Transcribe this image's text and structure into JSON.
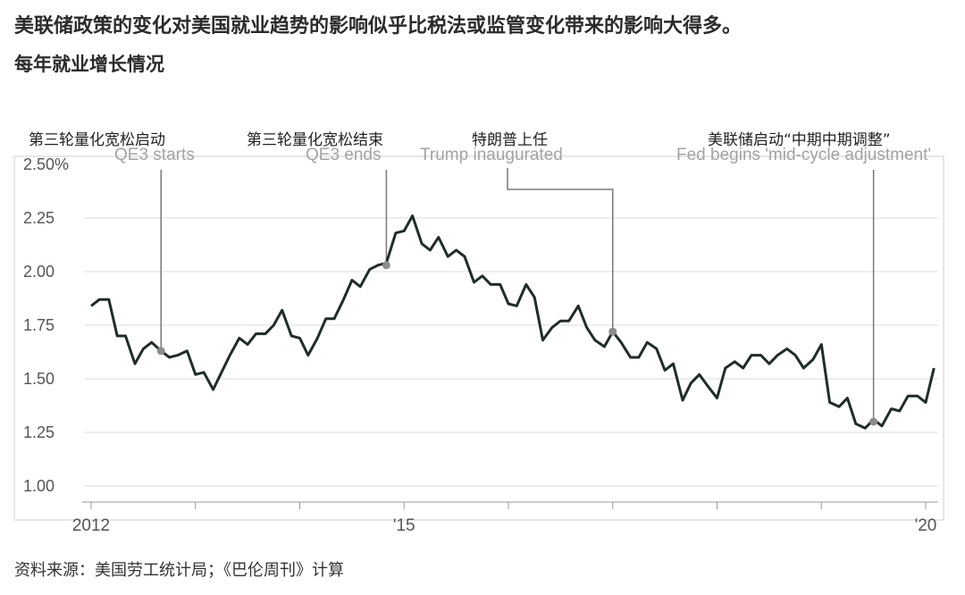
{
  "header": {
    "title": "美联储政策的变化对美国就业趋势的影响似乎比税法或监管变化带来的影响大得多。",
    "subtitle": "每年就业增长情况"
  },
  "footer": {
    "source": "资料来源：美国劳工统计局；《巴伦周刊》计算"
  },
  "chart_data": {
    "type": "line",
    "title": "",
    "xlabel": "",
    "ylabel": "",
    "ylim": [
      1.0,
      2.5
    ],
    "yticks": [
      "2.50%",
      "2.25",
      "2.00",
      "1.75",
      "1.50",
      "1.25",
      "1.00"
    ],
    "ytick_values": [
      2.5,
      2.25,
      2.0,
      1.75,
      1.5,
      1.25,
      1.0
    ],
    "xlim": [
      2012.0,
      2020.0
    ],
    "xticks": [
      "2012",
      "'15",
      "'20"
    ],
    "xtick_values": [
      2012,
      2015,
      2020
    ],
    "minor_xticks": [
      2013,
      2014,
      2016,
      2017,
      2018,
      2019
    ],
    "grid": "horizontal",
    "series": [
      {
        "color": "#1f2d2a",
        "x": [
          2012.0,
          2012.08,
          2012.17,
          2012.25,
          2012.33,
          2012.42,
          2012.5,
          2012.58,
          2012.67,
          2012.75,
          2012.83,
          2012.92,
          2013.0,
          2013.08,
          2013.17,
          2013.25,
          2013.33,
          2013.42,
          2013.5,
          2013.58,
          2013.67,
          2013.75,
          2013.83,
          2013.92,
          2014.0,
          2014.08,
          2014.17,
          2014.25,
          2014.33,
          2014.42,
          2014.5,
          2014.58,
          2014.67,
          2014.75,
          2014.83,
          2014.92,
          2015.0,
          2015.08,
          2015.17,
          2015.25,
          2015.33,
          2015.42,
          2015.5,
          2015.58,
          2015.67,
          2015.75,
          2015.83,
          2015.92,
          2016.0,
          2016.08,
          2016.17,
          2016.25,
          2016.33,
          2016.42,
          2016.5,
          2016.58,
          2016.67,
          2016.75,
          2016.83,
          2016.92,
          2017.0,
          2017.08,
          2017.17,
          2017.25,
          2017.33,
          2017.42,
          2017.5,
          2017.58,
          2017.67,
          2017.75,
          2017.83,
          2017.92,
          2018.0,
          2018.08,
          2018.17,
          2018.25,
          2018.33,
          2018.42,
          2018.5,
          2018.58,
          2018.67,
          2018.75,
          2018.83,
          2018.92,
          2019.0,
          2019.08,
          2019.17,
          2019.25,
          2019.33,
          2019.42,
          2019.5,
          2019.58,
          2019.67,
          2019.75,
          2019.83,
          2019.92,
          2020.0,
          2020.08
        ],
        "values": [
          1.84,
          1.87,
          1.87,
          1.7,
          1.7,
          1.57,
          1.64,
          1.67,
          1.63,
          1.6,
          1.61,
          1.63,
          1.52,
          1.53,
          1.45,
          1.53,
          1.61,
          1.69,
          1.66,
          1.71,
          1.71,
          1.75,
          1.82,
          1.7,
          1.69,
          1.61,
          1.69,
          1.78,
          1.78,
          1.87,
          1.96,
          1.93,
          2.01,
          2.03,
          2.04,
          2.18,
          2.19,
          2.26,
          2.13,
          2.1,
          2.16,
          2.07,
          2.1,
          2.07,
          1.95,
          1.98,
          1.94,
          1.94,
          1.85,
          1.84,
          1.94,
          1.88,
          1.68,
          1.74,
          1.77,
          1.77,
          1.84,
          1.74,
          1.68,
          1.65,
          1.72,
          1.67,
          1.6,
          1.6,
          1.67,
          1.64,
          1.54,
          1.57,
          1.4,
          1.48,
          1.52,
          1.46,
          1.41,
          1.55,
          1.58,
          1.55,
          1.61,
          1.61,
          1.57,
          1.61,
          1.64,
          1.61,
          1.55,
          1.59,
          1.66,
          1.39,
          1.37,
          1.41,
          1.29,
          1.27,
          1.31,
          1.28,
          1.36,
          1.35,
          1.42,
          1.42,
          1.39,
          1.55
        ]
      }
    ],
    "annotations": [
      {
        "label": "第三轮量化宽松启动",
        "original": "QE3 starts",
        "x": 2012.67,
        "y": 1.63
      },
      {
        "label": "第三轮量化宽松结束",
        "original": "QE3 ends",
        "x": 2014.83,
        "y": 2.03
      },
      {
        "label": "特朗普上任",
        "original": "Trump inaugurated",
        "x": 2017.0,
        "y": 1.72
      },
      {
        "label": "美联储启动“中期中期调整”",
        "original": "Fed begins 'mid-cycle adjustment'",
        "x": 2019.5,
        "y": 1.3
      }
    ]
  }
}
